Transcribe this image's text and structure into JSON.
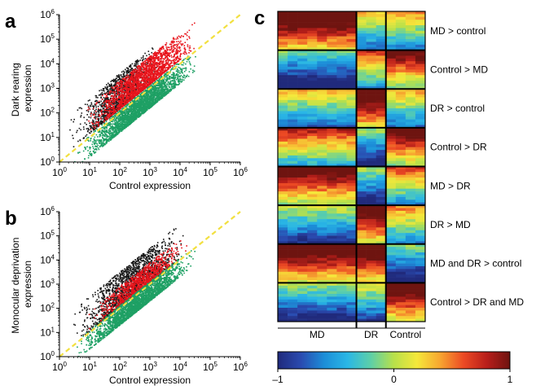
{
  "panels": [
    {
      "letter": "a",
      "chart_data": {
        "type": "scatter",
        "xlabel": "Control expression",
        "ylabel_lines": [
          "Dark rearing",
          "expression"
        ],
        "x_scale": "log",
        "y_scale": "log",
        "xlim": [
          1,
          1000000
        ],
        "ylim": [
          1,
          1000000
        ],
        "tick_exponents": [
          0,
          1,
          2,
          3,
          4,
          5,
          6
        ],
        "grid": false,
        "reference_line": {
          "x": [
            1,
            1000000
          ],
          "y": [
            1,
            1000000
          ],
          "color": "#f2e040"
        },
        "series": [
          {
            "color": "#1a1a1a",
            "n": 1300,
            "x_log_range": [
              0.2,
              3.5
            ],
            "offset_range": [
              0.15,
              1.6
            ]
          },
          {
            "color": "#e8141c",
            "n": 2000,
            "x_log_range": [
              0.6,
              4.6
            ],
            "offset_range": [
              0.15,
              1.3
            ]
          },
          {
            "color": "#1ea064",
            "n": 2800,
            "x_log_range": [
              0.3,
              4.7
            ],
            "offset_range": [
              -0.8,
              0.1
            ]
          }
        ]
      }
    },
    {
      "letter": "b",
      "chart_data": {
        "type": "scatter",
        "xlabel": "Control expression",
        "ylabel_lines": [
          "Monocular deprivation",
          "expression"
        ],
        "x_scale": "log",
        "y_scale": "log",
        "xlim": [
          1,
          1000000
        ],
        "ylim": [
          1,
          1000000
        ],
        "tick_exponents": [
          0,
          1,
          2,
          3,
          4,
          5,
          6
        ],
        "grid": false,
        "reference_line": {
          "x": [
            1,
            1000000
          ],
          "y": [
            1,
            1000000
          ],
          "color": "#f2e040"
        },
        "series": [
          {
            "color": "#1a1a1a",
            "n": 1800,
            "x_log_range": [
              0.2,
              4.3
            ],
            "offset_range": [
              0.05,
              1.5
            ]
          },
          {
            "color": "#e8141c",
            "n": 900,
            "x_log_range": [
              0.8,
              4.3
            ],
            "offset_range": [
              0.1,
              0.9
            ]
          },
          {
            "color": "#1ea064",
            "n": 2600,
            "x_log_range": [
              0.3,
              4.6
            ],
            "offset_range": [
              -0.7,
              0.1
            ]
          }
        ]
      }
    }
  ],
  "heatmap": {
    "letter": "c",
    "chart_data": {
      "type": "heatmap",
      "row_groups": [
        "MD > control",
        "Control > MD",
        "DR > control",
        "Control > DR",
        "MD > DR",
        "DR > MD",
        "MD and DR > control",
        "Control > DR and MD"
      ],
      "column_groups": [
        "MD",
        "DR",
        "Control"
      ],
      "column_group_sizes": [
        8,
        3,
        4
      ],
      "colorbar": {
        "min": -1,
        "max": 1,
        "tick_labels": [
          "–1",
          "0",
          "1"
        ],
        "colors": [
          "#202a7c",
          "#2a4bb0",
          "#1c8ed8",
          "#2ab7e6",
          "#5dcfa8",
          "#b8e04a",
          "#f5e83a",
          "#f7a530",
          "#ec4a24",
          "#b81e1a",
          "#6e1410"
        ]
      }
    }
  },
  "colors": {
    "axis": "#000000",
    "separator": "#000000"
  }
}
